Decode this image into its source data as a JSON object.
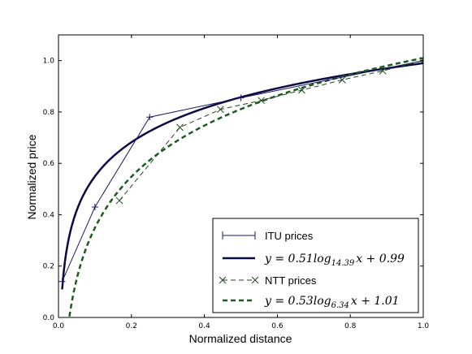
{
  "chart_data": {
    "type": "line",
    "xlabel": "Normalized distance",
    "ylabel": "Normalized price",
    "xlim": [
      0,
      1
    ],
    "ylim": [
      0,
      1.1
    ],
    "x_ticks": [
      "0.0",
      "0.2",
      "0.4",
      "0.6",
      "0.8",
      "1.0"
    ],
    "y_ticks": [
      "0.0",
      "0.2",
      "0.4",
      "0.6",
      "0.8",
      "1.0"
    ],
    "legend_position": "bottom-right",
    "grid": false,
    "series": [
      {
        "name": "ITU prices",
        "kind": "markers",
        "marker": "plus",
        "color": "#1a1a5e",
        "x": [
          0.01,
          0.1,
          0.25,
          0.5,
          1.0
        ],
        "y": [
          0.14,
          0.43,
          0.78,
          0.855,
          1.0
        ]
      },
      {
        "name": "NTT prices",
        "kind": "markers",
        "marker": "x",
        "color": "#1f4a1f",
        "x": [
          0.167,
          0.333,
          0.444,
          0.556,
          0.667,
          0.778,
          0.889,
          1.0
        ],
        "y": [
          0.455,
          0.74,
          0.81,
          0.845,
          0.885,
          0.925,
          0.96,
          1.0
        ]
      },
      {
        "name": "",
        "kind": "fit",
        "coef": 0.51,
        "base": 14.39,
        "intercept": 0.99,
        "color": "#0a0a40",
        "x_start": 0.01
      },
      {
        "name": "",
        "kind": "fit",
        "coef": 0.53,
        "base": 6.34,
        "intercept": 1.01,
        "color": "#1f5a1f",
        "x_start": 0.03
      }
    ],
    "legend": {
      "itu_label": "ITU prices",
      "eq1": {
        "lead": "y = 0.51log",
        "sub": "14.39",
        "tail": "x + 0.99"
      },
      "ntt_label": "NTT prices",
      "eq2": {
        "lead": "y = 0.53log",
        "sub": "6.34",
        "tail": "x + 1.01"
      }
    }
  }
}
